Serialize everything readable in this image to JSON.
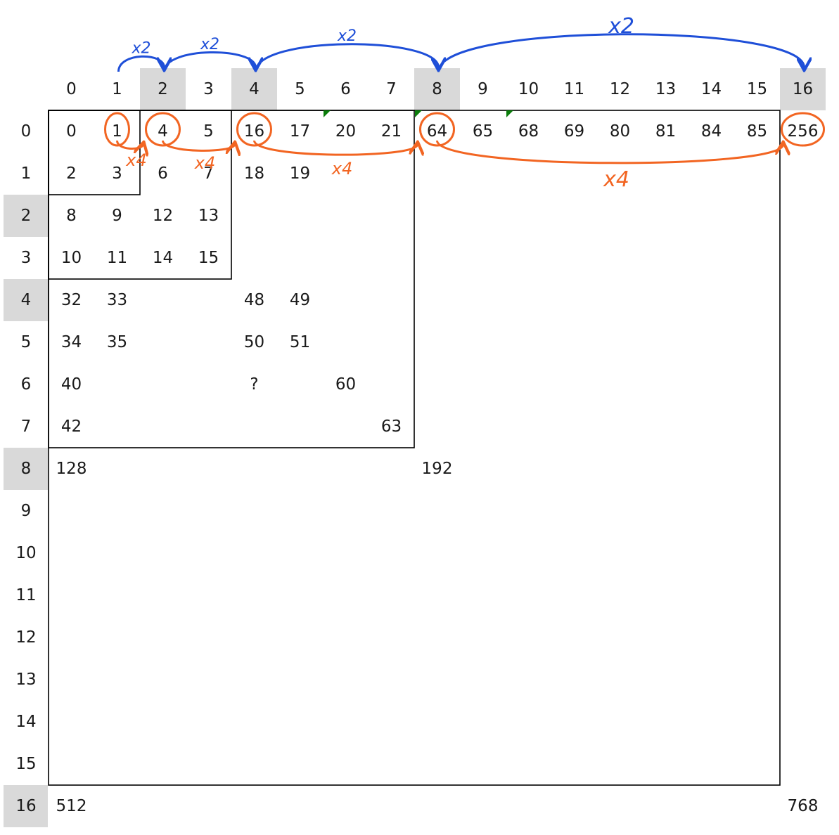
{
  "col_headers": [
    "0",
    "1",
    "2",
    "3",
    "4",
    "5",
    "6",
    "7",
    "8",
    "9",
    "10",
    "11",
    "12",
    "13",
    "14",
    "15",
    "16"
  ],
  "row_headers": [
    "0",
    "1",
    "2",
    "3",
    "4",
    "5",
    "6",
    "7",
    "8",
    "9",
    "10",
    "11",
    "12",
    "13",
    "14",
    "15",
    "16"
  ],
  "highlighted_indices": [
    2,
    4,
    8,
    16
  ],
  "cells": [
    {
      "r": 0,
      "c": 0,
      "v": "0"
    },
    {
      "r": 0,
      "c": 1,
      "v": "1"
    },
    {
      "r": 0,
      "c": 2,
      "v": "4"
    },
    {
      "r": 0,
      "c": 3,
      "v": "5"
    },
    {
      "r": 0,
      "c": 4,
      "v": "16"
    },
    {
      "r": 0,
      "c": 5,
      "v": "17"
    },
    {
      "r": 0,
      "c": 6,
      "v": "20"
    },
    {
      "r": 0,
      "c": 7,
      "v": "21"
    },
    {
      "r": 0,
      "c": 8,
      "v": "64"
    },
    {
      "r": 0,
      "c": 9,
      "v": "65"
    },
    {
      "r": 0,
      "c": 10,
      "v": "68"
    },
    {
      "r": 0,
      "c": 11,
      "v": "69"
    },
    {
      "r": 0,
      "c": 12,
      "v": "80"
    },
    {
      "r": 0,
      "c": 13,
      "v": "81"
    },
    {
      "r": 0,
      "c": 14,
      "v": "84"
    },
    {
      "r": 0,
      "c": 15,
      "v": "85"
    },
    {
      "r": 0,
      "c": 16,
      "v": "256"
    },
    {
      "r": 1,
      "c": 0,
      "v": "2"
    },
    {
      "r": 1,
      "c": 1,
      "v": "3"
    },
    {
      "r": 1,
      "c": 2,
      "v": "6"
    },
    {
      "r": 1,
      "c": 3,
      "v": "7"
    },
    {
      "r": 1,
      "c": 4,
      "v": "18"
    },
    {
      "r": 1,
      "c": 5,
      "v": "19"
    },
    {
      "r": 2,
      "c": 0,
      "v": "8"
    },
    {
      "r": 2,
      "c": 1,
      "v": "9"
    },
    {
      "r": 2,
      "c": 2,
      "v": "12"
    },
    {
      "r": 2,
      "c": 3,
      "v": "13"
    },
    {
      "r": 3,
      "c": 0,
      "v": "10"
    },
    {
      "r": 3,
      "c": 1,
      "v": "11"
    },
    {
      "r": 3,
      "c": 2,
      "v": "14"
    },
    {
      "r": 3,
      "c": 3,
      "v": "15"
    },
    {
      "r": 4,
      "c": 0,
      "v": "32"
    },
    {
      "r": 4,
      "c": 1,
      "v": "33"
    },
    {
      "r": 4,
      "c": 4,
      "v": "48"
    },
    {
      "r": 4,
      "c": 5,
      "v": "49"
    },
    {
      "r": 5,
      "c": 0,
      "v": "34"
    },
    {
      "r": 5,
      "c": 1,
      "v": "35"
    },
    {
      "r": 5,
      "c": 4,
      "v": "50"
    },
    {
      "r": 5,
      "c": 5,
      "v": "51"
    },
    {
      "r": 6,
      "c": 0,
      "v": "40"
    },
    {
      "r": 6,
      "c": 4,
      "v": "?"
    },
    {
      "r": 6,
      "c": 6,
      "v": "60"
    },
    {
      "r": 7,
      "c": 0,
      "v": "42"
    },
    {
      "r": 7,
      "c": 7,
      "v": "63"
    },
    {
      "r": 8,
      "c": 0,
      "v": "128"
    },
    {
      "r": 8,
      "c": 8,
      "v": "192"
    },
    {
      "r": 16,
      "c": 0,
      "v": "512"
    },
    {
      "r": 16,
      "c": 16,
      "v": "768"
    }
  ],
  "blocks": [
    2,
    4,
    8,
    16
  ],
  "circled_cells": [
    {
      "r": 0,
      "c": 1
    },
    {
      "r": 0,
      "c": 2
    },
    {
      "r": 0,
      "c": 4
    },
    {
      "r": 0,
      "c": 8
    },
    {
      "r": 0,
      "c": 16
    }
  ],
  "col_arrows": [
    {
      "from": 1,
      "to": 2,
      "label": "x2"
    },
    {
      "from": 2,
      "to": 4,
      "label": "x2"
    },
    {
      "from": 4,
      "to": 8,
      "label": "x2"
    },
    {
      "from": 8,
      "to": 16,
      "label": "x2"
    }
  ],
  "cell_arrows": [
    {
      "from": 1,
      "to": 2,
      "label": "x4"
    },
    {
      "from": 2,
      "to": 4,
      "label": "x4"
    },
    {
      "from": 4,
      "to": 8,
      "label": "x4"
    },
    {
      "from": 8,
      "to": 16,
      "label": "x4"
    }
  ],
  "colors": {
    "header_highlight": "#d9d9d9",
    "arrow_blue": "#1f4fd8",
    "arrow_orange": "#f26522",
    "grid_line": "#000000",
    "marker_green": "#0a7d0a",
    "text": "#1a1a1a"
  }
}
